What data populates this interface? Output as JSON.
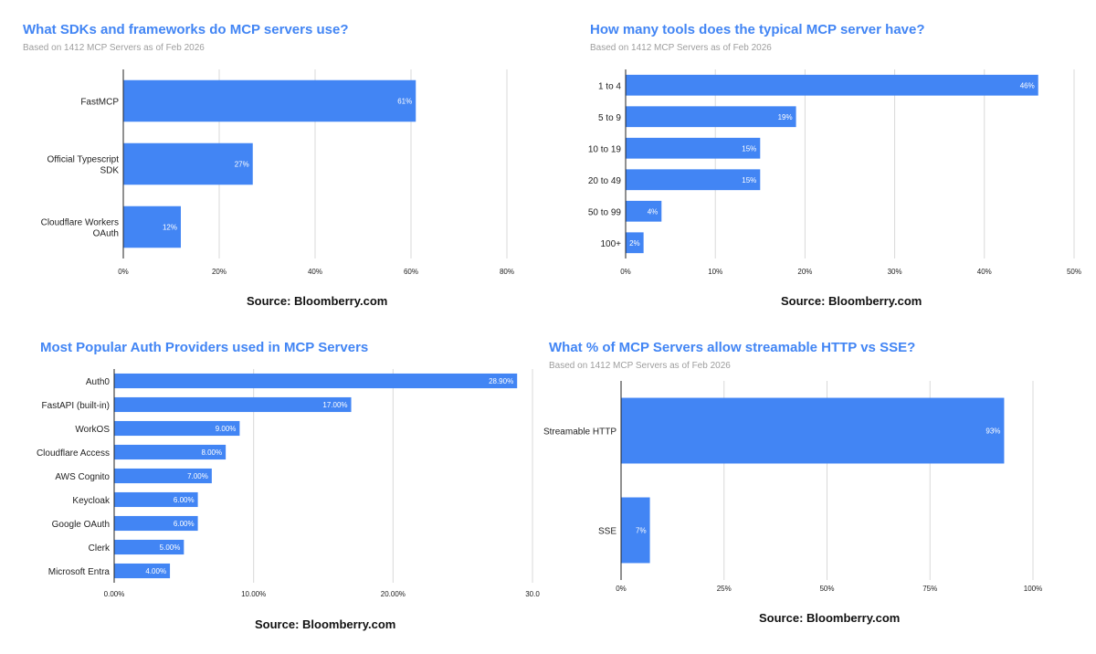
{
  "colors": {
    "bar": "#4285f4",
    "title": "#4285f4",
    "grid": "#d9d9d9",
    "axis": "#222222",
    "label": "#222222",
    "subtitle": "#9e9e9e"
  },
  "chart_data": [
    {
      "type": "bar",
      "orientation": "horizontal",
      "title": "What SDKs and frameworks do MCP servers use?",
      "subtitle": "Based on 1412 MCP Servers as of Feb 2026",
      "source": "Source: Bloomberry.com",
      "categories": [
        "FastMCP",
        "Official Typescript SDK",
        "Cloudflare Workers OAuth"
      ],
      "values": [
        61,
        27,
        12
      ],
      "value_labels": [
        "61%",
        "27%",
        "12%"
      ],
      "xlim": [
        0,
        80
      ],
      "ticks": [
        0,
        20,
        40,
        60,
        80
      ],
      "tick_labels": [
        "0%",
        "20%",
        "40%",
        "60%",
        "80%"
      ],
      "grid": true
    },
    {
      "type": "bar",
      "orientation": "horizontal",
      "title": "How many tools does the typical MCP server have?",
      "subtitle": "Based on 1412 MCP Servers as of Feb 2026",
      "source": "Source: Bloomberry.com",
      "categories": [
        "1 to 4",
        "5 to 9",
        "10 to 19",
        "20 to 49",
        "50 to 99",
        "100+"
      ],
      "values": [
        46,
        19,
        15,
        15,
        4,
        2
      ],
      "value_labels": [
        "46%",
        "19%",
        "15%",
        "15%",
        "4%",
        "2%"
      ],
      "xlim": [
        0,
        50
      ],
      "ticks": [
        0,
        10,
        20,
        30,
        40,
        50
      ],
      "tick_labels": [
        "0%",
        "10%",
        "20%",
        "30%",
        "40%",
        "50%"
      ],
      "grid": true
    },
    {
      "type": "bar",
      "orientation": "horizontal",
      "title": "Most Popular Auth Providers used in MCP Servers",
      "subtitle": "",
      "source": "Source: Bloomberry.com",
      "categories": [
        "Auth0",
        "FastAPI (built-in)",
        "WorkOS",
        "Cloudflare Access",
        "AWS Cognito",
        "Keycloak",
        "Google OAuth",
        "Clerk",
        "Microsoft Entra"
      ],
      "values": [
        28.9,
        17.0,
        9.0,
        8.0,
        7.0,
        6.0,
        6.0,
        5.0,
        4.0
      ],
      "value_labels": [
        "28.90%",
        "17.00%",
        "9.00%",
        "8.00%",
        "7.00%",
        "6.00%",
        "6.00%",
        "5.00%",
        "4.00%"
      ],
      "xlim": [
        0,
        30
      ],
      "ticks": [
        0,
        10,
        20,
        30
      ],
      "tick_labels": [
        "0.00%",
        "10.00%",
        "20.00%",
        "30.0"
      ],
      "grid": true
    },
    {
      "type": "bar",
      "orientation": "horizontal",
      "title": "What % of MCP Servers allow streamable HTTP vs SSE?",
      "subtitle": "Based on 1412 MCP Servers as of Feb 2026",
      "source": "Source: Bloomberry.com",
      "categories": [
        "Streamable HTTP",
        "SSE"
      ],
      "values": [
        93,
        7
      ],
      "value_labels": [
        "93%",
        "7%"
      ],
      "xlim": [
        0,
        100
      ],
      "ticks": [
        0,
        25,
        50,
        75,
        100
      ],
      "tick_labels": [
        "0%",
        "25%",
        "50%",
        "75%",
        "100%"
      ],
      "grid": true
    }
  ]
}
